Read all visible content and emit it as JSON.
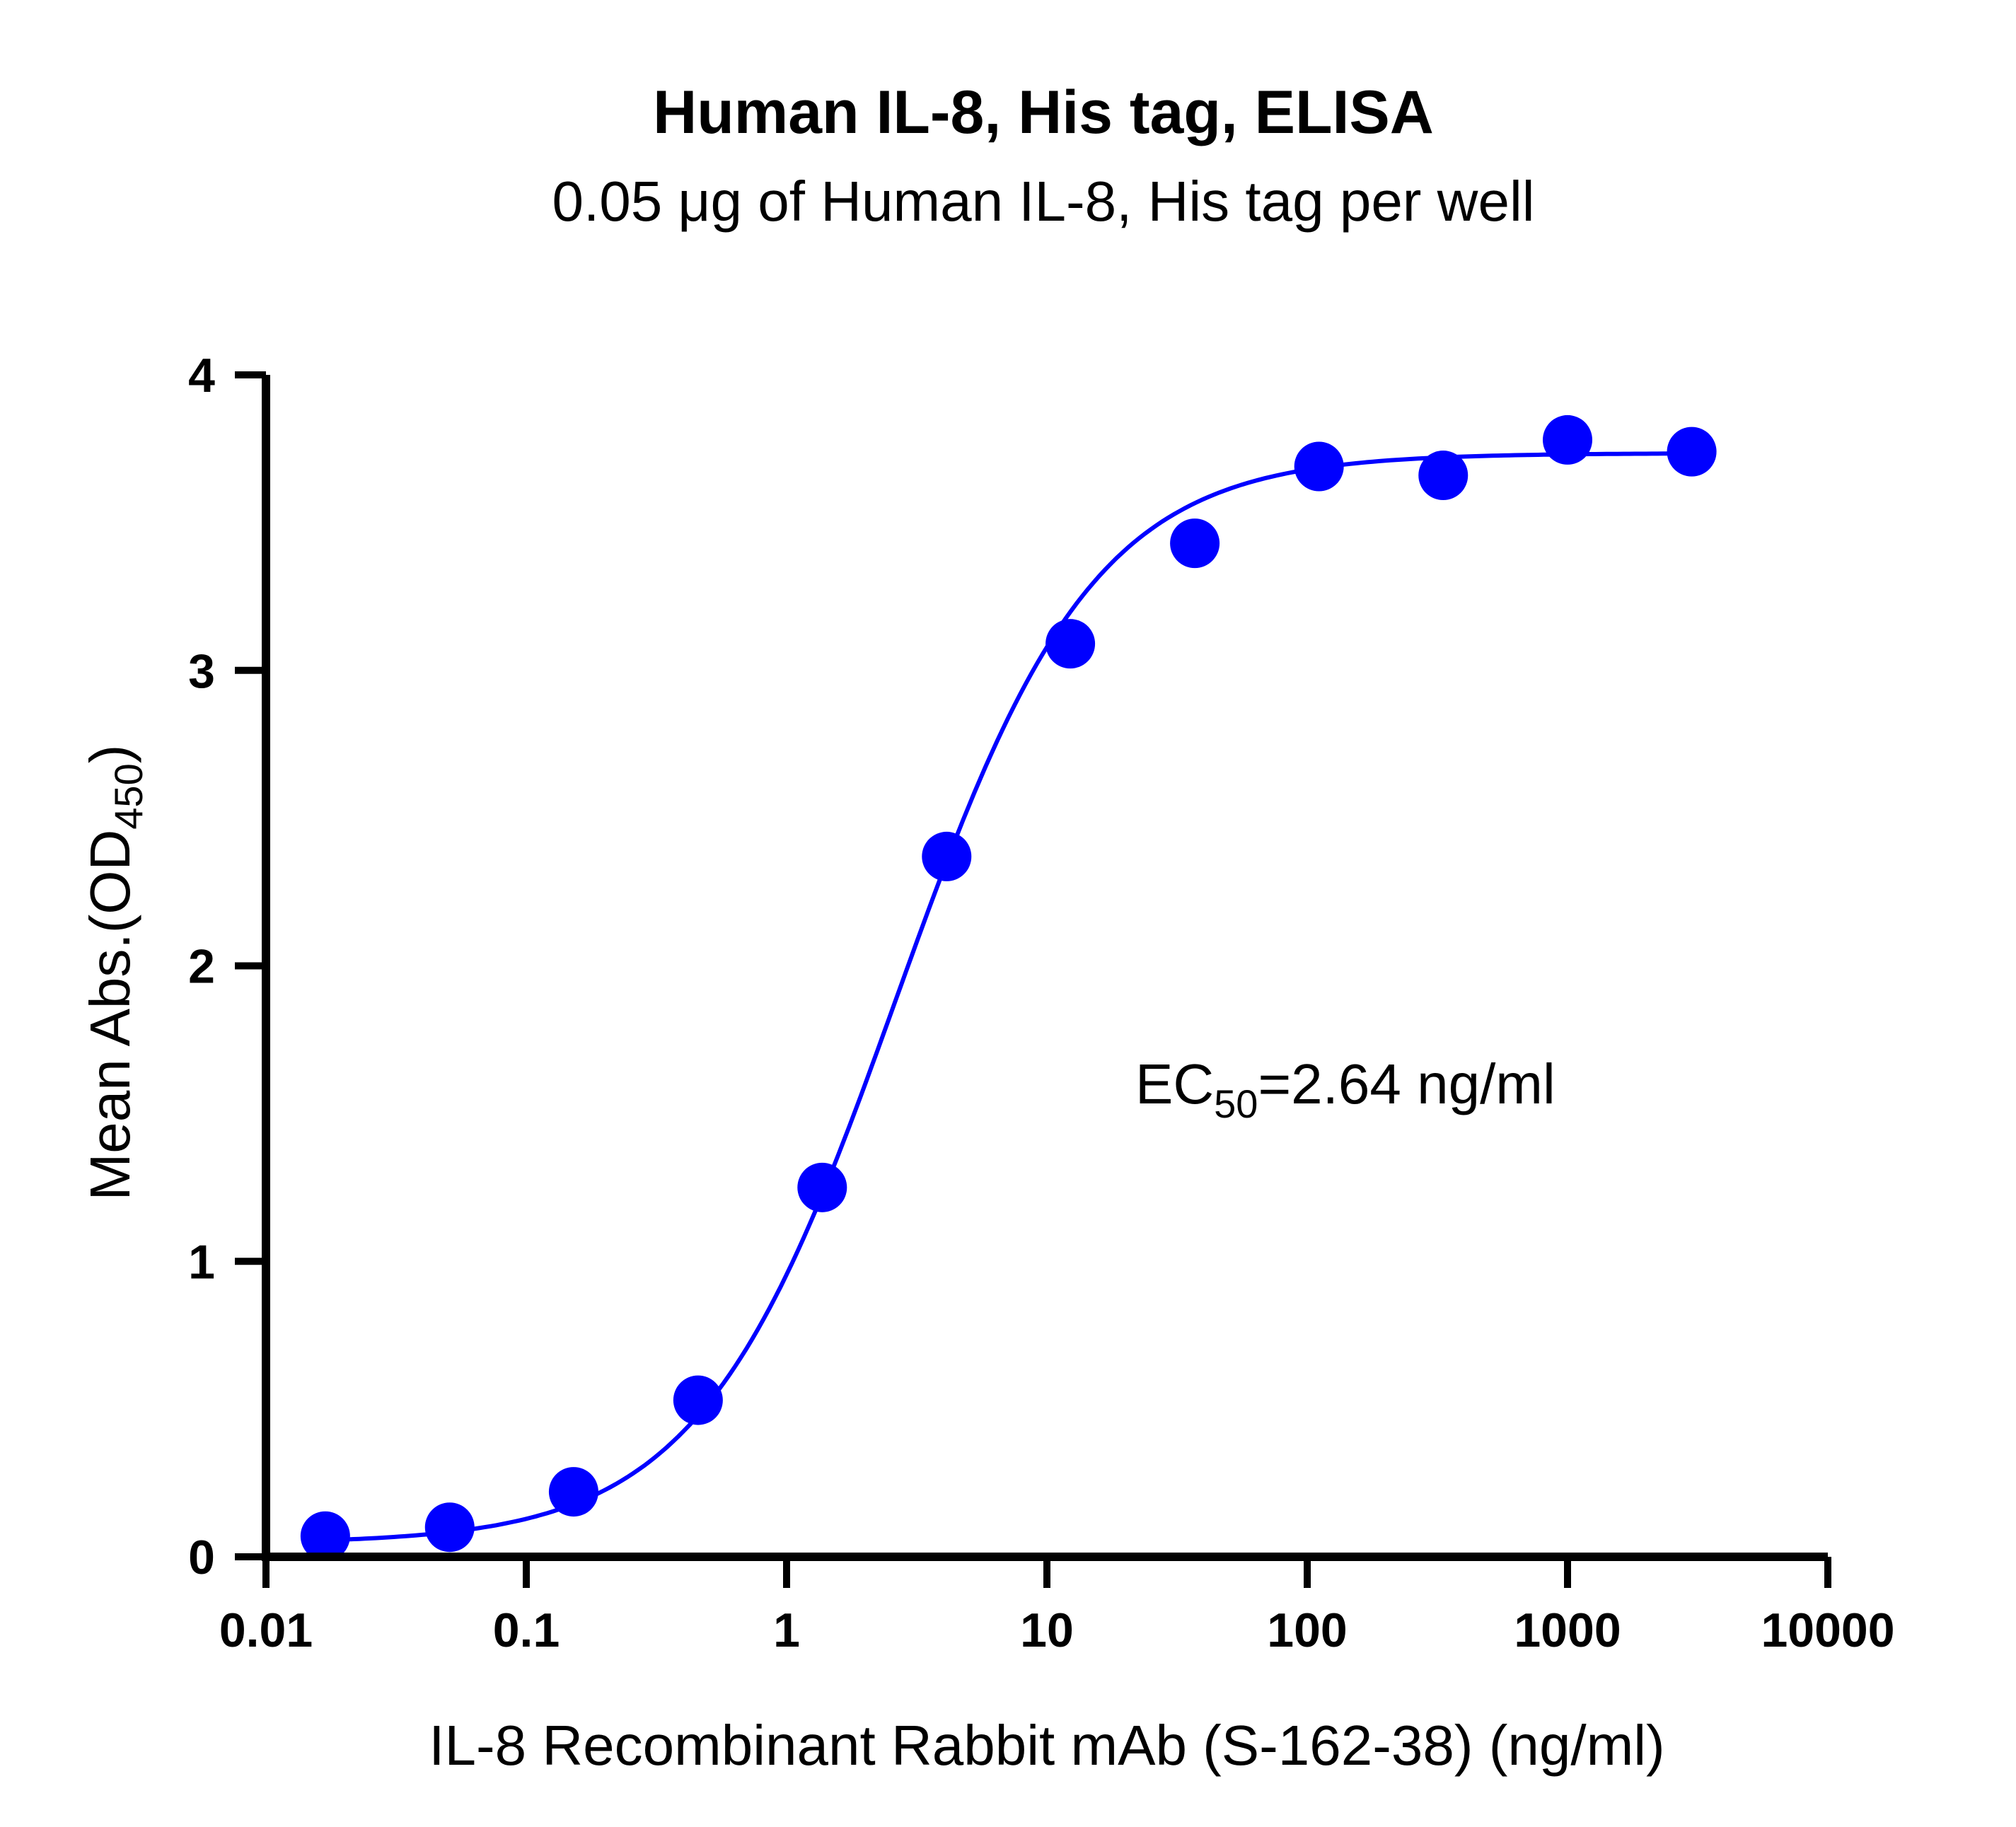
{
  "chart_data": {
    "type": "scatter",
    "title": "Human IL-8, His tag, ELISA",
    "subtitle": "0.05 μg of Human IL-8, His tag per well",
    "xlabel": "IL-8 Recombinant Rabbit mAb (S-162-38) (ng/ml)",
    "ylabel": {
      "main": "Mean Abs.(OD",
      "sub": "450",
      "close": ")"
    },
    "xscale": "log",
    "xlim": [
      0.01,
      10000
    ],
    "ylim": [
      0,
      4
    ],
    "xticks": [
      {
        "value": 0.01,
        "label": "0.01"
      },
      {
        "value": 0.1,
        "label": "0.1"
      },
      {
        "value": 1,
        "label": "1"
      },
      {
        "value": 10,
        "label": "10"
      },
      {
        "value": 100,
        "label": "100"
      },
      {
        "value": 1000,
        "label": "1000"
      },
      {
        "value": 10000,
        "label": "10000"
      }
    ],
    "yticks": [
      {
        "value": 0,
        "label": "0"
      },
      {
        "value": 1,
        "label": "1"
      },
      {
        "value": 2,
        "label": "2"
      },
      {
        "value": 3,
        "label": "3"
      },
      {
        "value": 4,
        "label": "4"
      }
    ],
    "grid": false,
    "color": "#0000ff",
    "series": [
      {
        "x": [
          0.0169,
          0.0508,
          0.152,
          0.457,
          1.37,
          4.12,
          12.3,
          37.0,
          111,
          333,
          1000,
          3000
        ],
        "y": [
          0.07,
          0.1,
          0.22,
          0.53,
          1.25,
          2.37,
          3.09,
          3.43,
          3.69,
          3.66,
          3.78,
          3.74
        ],
        "fit": {
          "model": "4PL",
          "bottom": 0.045,
          "top": 3.735,
          "ec50": 2.64,
          "hill": 1.15
        }
      }
    ],
    "annotation": {
      "prefix": "EC",
      "sub": "50",
      "suffix": "=2.64 ng/ml"
    }
  }
}
